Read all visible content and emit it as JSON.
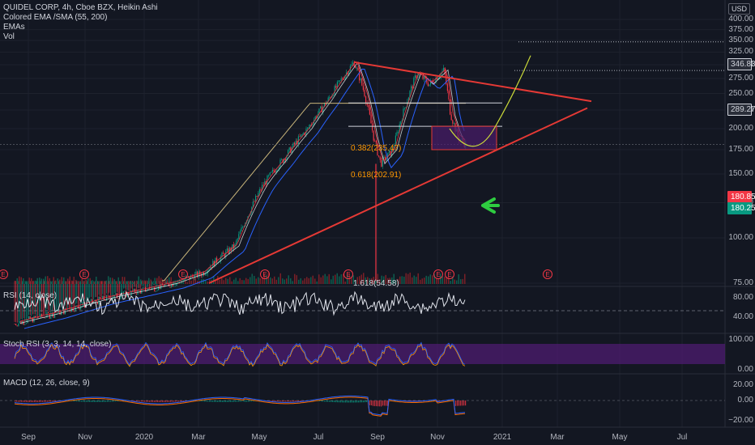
{
  "legend": {
    "line1": "QUIDEL CORP, 4h, Cboe BZX, Heikin Ashi",
    "line2": "Colored EMA /SMA (55, 200)",
    "line3": "EMAs",
    "line4": "Vol"
  },
  "currency": "USD",
  "price_tags": [
    {
      "label": "346.83",
      "color": "#d1d4dc",
      "bg": "#2a2e39",
      "border": "#d1d4dc"
    },
    {
      "label": "289.27",
      "color": "#d1d4dc",
      "bg": "#2a2e39",
      "border": "#d1d4dc"
    },
    {
      "label": "180.85",
      "color": "#ffffff",
      "bg": "#f23645",
      "border": "#f23645"
    },
    {
      "label": "180.25",
      "color": "#ffffff",
      "bg": "#089981",
      "border": "#089981"
    }
  ],
  "fib_labels": [
    "0.382(235.47)",
    "0.618(202.91)"
  ],
  "annotation_text": "1.618(54.58)",
  "earnings_marker": "E",
  "indicators": {
    "rsi": {
      "label": "RSI (14, close)",
      "ticks": [
        "80.00",
        "40.00"
      ]
    },
    "stoch": {
      "label": "Stoch RSI (3, 3, 14, 14, close)",
      "ticks": [
        "100.00",
        "0.00"
      ]
    },
    "macd": {
      "label": "MACD (12, 26, close, 9)",
      "ticks": [
        "20.00",
        "0.00",
        "−20.00"
      ]
    }
  },
  "colors": {
    "up": "#089981",
    "down": "#f23645",
    "trend": "#e53935",
    "fib": "#ff9800",
    "rsi": "#e0e3eb",
    "stoch_k": "#2962ff",
    "stoch_d": "#ff9800",
    "macd": "#2962ff",
    "signal": "#ff6d00",
    "sma": "#c8b47a",
    "band": "#4a1c6b",
    "arrow": "#2ecc40"
  },
  "chart_data": {
    "type": "candlestick",
    "ylim": [
      75,
      400
    ],
    "yscale": "log",
    "y_ticks": [
      "400.00",
      "375.00",
      "350.00",
      "325.00",
      "300.00",
      "275.00",
      "250.00",
      "225.00",
      "200.00",
      "175.00",
      "150.00",
      "125.00",
      "100.00",
      "75.00"
    ],
    "x_ticks": [
      "Sep",
      "Nov",
      "2020",
      "Mar",
      "May",
      "Jul",
      "Sep",
      "Nov",
      "2021",
      "Mar",
      "May",
      "Jul"
    ],
    "close_series": [
      {
        "d": "Aug 2019",
        "v": 58
      },
      {
        "d": "Oct 2019",
        "v": 63
      },
      {
        "d": "Dec 2019",
        "v": 72
      },
      {
        "d": "Jan 2020",
        "v": 74
      },
      {
        "d": "Feb 2020",
        "v": 80
      },
      {
        "d": "Mar 2020",
        "v": 95
      },
      {
        "d": "Apr 2020",
        "v": 130
      },
      {
        "d": "May 2020",
        "v": 160
      },
      {
        "d": "Jun 2020",
        "v": 215
      },
      {
        "d": "Jul 2020",
        "v": 270
      },
      {
        "d": "Aug 2020",
        "v": 300
      },
      {
        "d": "Aug 2020",
        "v": 210
      },
      {
        "d": "Sep 2020",
        "v": 155
      },
      {
        "d": "Oct 2020",
        "v": 265
      },
      {
        "d": "Oct 2020",
        "v": 285
      },
      {
        "d": "Nov 2020",
        "v": 230
      },
      {
        "d": "Nov 2020",
        "v": 185
      },
      {
        "d": "Nov 2020",
        "v": 181
      }
    ],
    "horizontal_levels": [
      346.83,
      289.27,
      235.47,
      202.91
    ],
    "last_prices": [
      180.85,
      180.25
    ]
  }
}
